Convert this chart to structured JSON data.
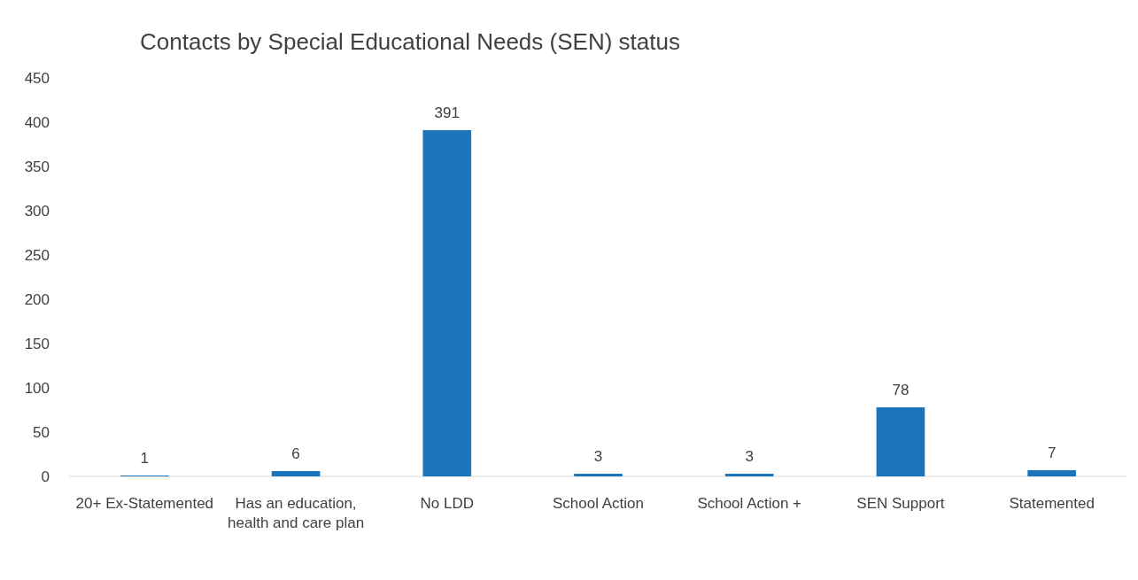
{
  "chart_data": {
    "type": "bar",
    "title": "Contacts by Special Educational Needs (SEN) status",
    "categories": [
      "20+ Ex-Statemented",
      "Has an education, health and care plan",
      "No LDD",
      "School Action",
      "School Action +",
      "SEN Support",
      "Statemented"
    ],
    "values": [
      1,
      6,
      391,
      3,
      3,
      78,
      7
    ],
    "color": "#1a75bc",
    "ylim": [
      0,
      450
    ],
    "yticks": [
      0,
      50,
      100,
      150,
      200,
      250,
      300,
      350,
      400,
      450
    ],
    "grid": false,
    "data_labels": true
  }
}
